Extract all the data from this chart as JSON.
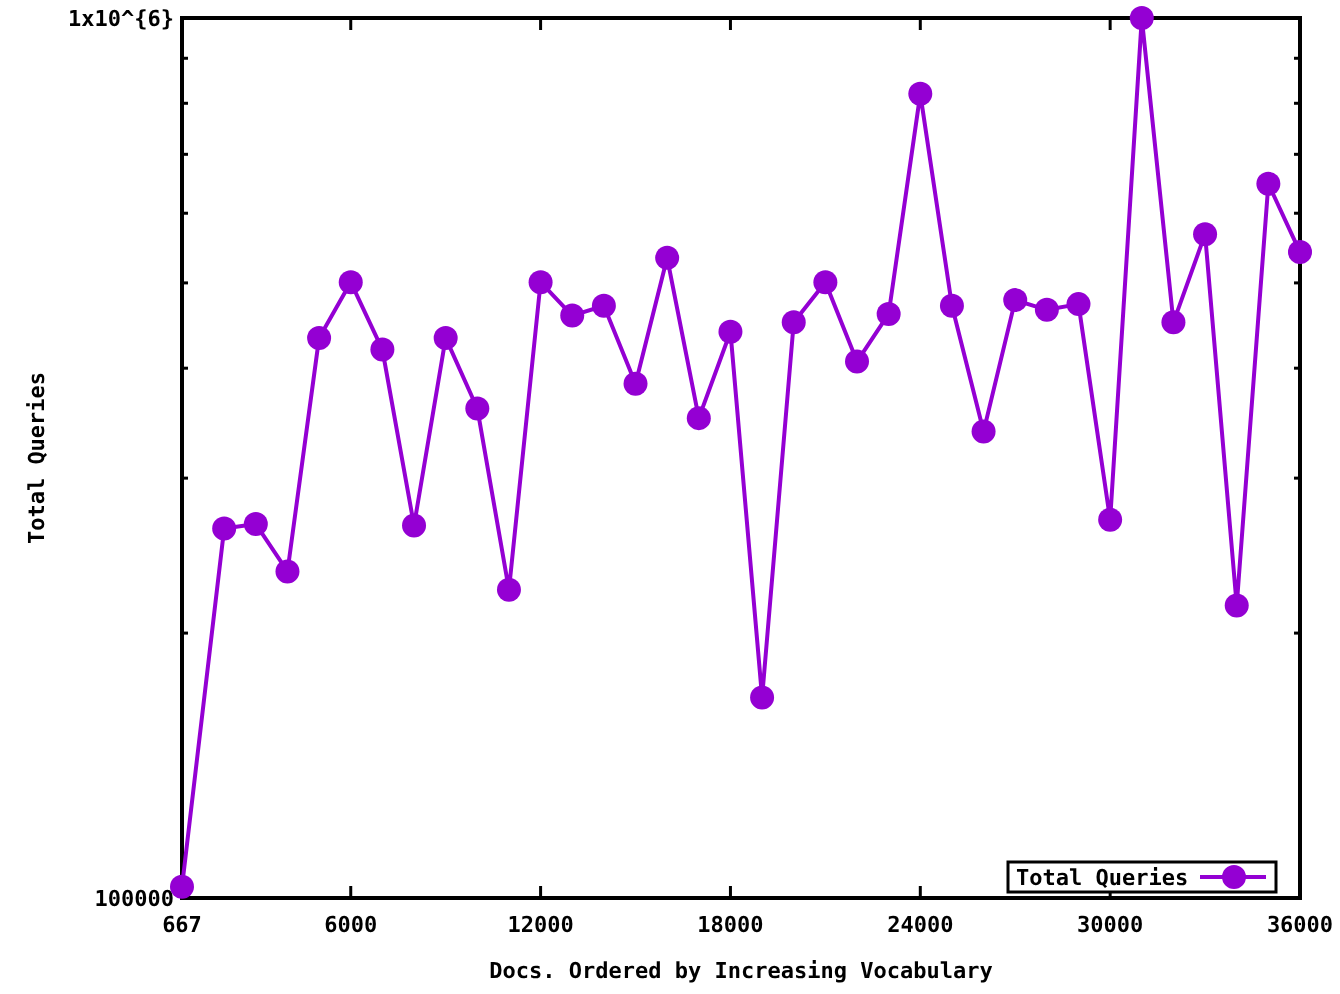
{
  "chart_data": {
    "type": "line",
    "xlabel": "Docs. Ordered by Increasing Vocabulary",
    "ylabel": "Total Queries",
    "x": [
      667,
      2000,
      3000,
      4000,
      5000,
      6000,
      7000,
      8000,
      9000,
      10000,
      11000,
      12000,
      13000,
      14000,
      15000,
      16000,
      17000,
      18000,
      19000,
      20000,
      21000,
      22000,
      23000,
      24000,
      25000,
      26000,
      27000,
      28000,
      29000,
      30000,
      31000,
      32000,
      33000,
      34000,
      35000,
      36000
    ],
    "series": [
      {
        "name": "Total Queries",
        "color": "#9400d3",
        "values": [
          103000,
          263000,
          266000,
          235000,
          433000,
          501000,
          420000,
          265000,
          433000,
          360000,
          224000,
          501000,
          459000,
          471000,
          384000,
          534000,
          351000,
          440000,
          169000,
          451000,
          501000,
          407000,
          461000,
          820000,
          471000,
          339000,
          478000,
          466000,
          473000,
          269000,
          1000000,
          451000,
          568000,
          215000,
          648000,
          542000
        ]
      }
    ],
    "xlim": [
      667,
      36000
    ],
    "xticks": [
      667,
      6000,
      12000,
      18000,
      24000,
      30000,
      36000
    ],
    "ylim": [
      100000,
      1000000
    ],
    "yticks": [
      {
        "value": 100000,
        "label": "100000"
      },
      {
        "value": 200000,
        "label": null
      },
      {
        "value": 300000,
        "label": null
      },
      {
        "value": 400000,
        "label": null
      },
      {
        "value": 500000,
        "label": null
      },
      {
        "value": 600000,
        "label": null
      },
      {
        "value": 700000,
        "label": null
      },
      {
        "value": 800000,
        "label": null
      },
      {
        "value": 900000,
        "label": null
      },
      {
        "value": 1000000,
        "label": "1x10^{6}"
      }
    ],
    "log": true,
    "grid": false,
    "legend": "bottom right",
    "marker": "circle",
    "line_style": "solid"
  }
}
